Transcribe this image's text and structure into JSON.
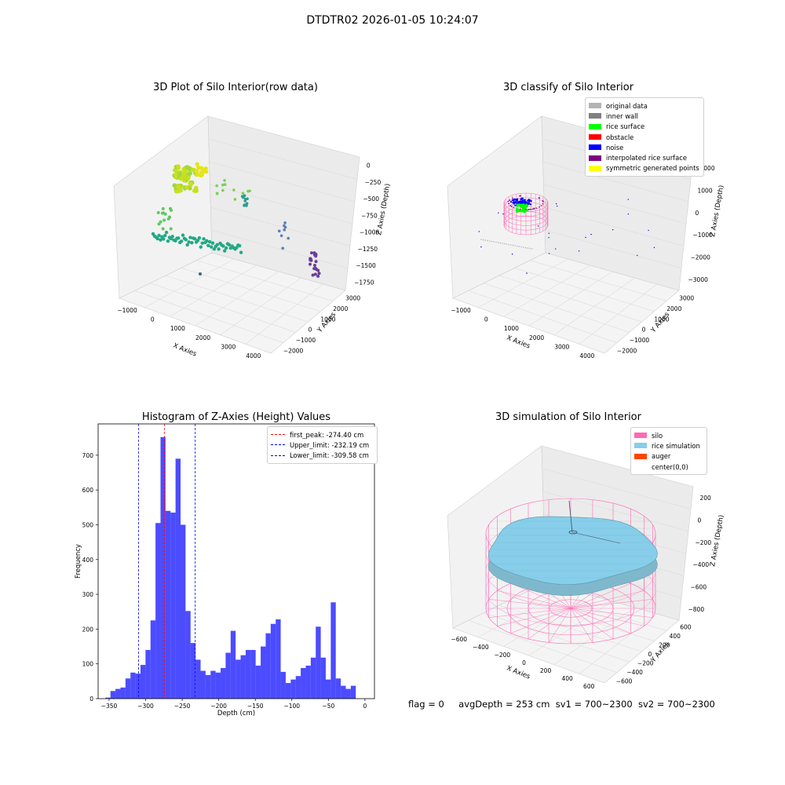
{
  "suptitle": "DTDTR02 2026-01-05 10:24:07",
  "chart_data": [
    {
      "type": "scatter",
      "title": "3D Plot of Silo Interior(row data)",
      "xlabel": "X Axies",
      "ylabel": "Y Axies",
      "zlabel": "Z Axies (Depth)",
      "x_ticks": [
        "−1000",
        "0",
        "1000",
        "2000",
        "3000",
        "4000"
      ],
      "y_ticks": [
        "−2000",
        "−1000",
        "0",
        "1000",
        "2000",
        "3000"
      ],
      "z_ticks": [
        "−1750",
        "−1500",
        "−1250",
        "−1000",
        "−750",
        "−500",
        "−250",
        "0"
      ]
    },
    {
      "type": "scatter",
      "title": "3D classify of Silo Interior",
      "xlabel": "X Axies",
      "ylabel": "Y Axies",
      "zlabel": "Z Axies (Depth)",
      "x_ticks": [
        "−1000",
        "0",
        "1000",
        "2000",
        "3000",
        "4000"
      ],
      "y_ticks": [
        "−2000",
        "−1000",
        "0",
        "1000",
        "2000",
        "3000"
      ],
      "z_ticks": [
        "−3000",
        "−2000",
        "−1000",
        "0",
        "1000",
        "2000"
      ],
      "legend": [
        {
          "label": "original data",
          "color": "#b3b3b3"
        },
        {
          "label": "inner wall",
          "color": "#808080"
        },
        {
          "label": "rice surface",
          "color": "#00ff00"
        },
        {
          "label": "obstacle",
          "color": "#ff0000"
        },
        {
          "label": "noise",
          "color": "#0000ff"
        },
        {
          "label": "interpolated rice surface",
          "color": "#800080"
        },
        {
          "label": "symmetric generated points",
          "color": "#ffff00"
        }
      ]
    },
    {
      "type": "bar",
      "title": "Histogram of Z-Axies (Height) Values",
      "xlabel": "Depth (cm)",
      "ylabel": "Frequency",
      "xlim": [
        -365,
        13
      ],
      "ylim": [
        0,
        790
      ],
      "x_ticks": [
        -350,
        -300,
        -250,
        -200,
        -150,
        -100,
        -50,
        0
      ],
      "y_ticks": [
        0,
        100,
        200,
        300,
        400,
        500,
        600,
        700
      ],
      "bin_start": -355.0,
      "bin_width": 6.85,
      "values": [
        3,
        22,
        28,
        32,
        58,
        75,
        72,
        97,
        140,
        225,
        505,
        752,
        540,
        535,
        690,
        500,
        252,
        160,
        112,
        80,
        68,
        80,
        75,
        88,
        132,
        195,
        112,
        125,
        140,
        140,
        95,
        150,
        188,
        215,
        228,
        77,
        45,
        55,
        65,
        88,
        95,
        118,
        207,
        118,
        55,
        277,
        58,
        37,
        28,
        37
      ],
      "color": "#0000ff",
      "lines": [
        {
          "label": "first_peak: -274.40 cm",
          "x": -274.4,
          "color": "#ff0000"
        },
        {
          "label": "Upper_limit: -232.19 cm",
          "x": -232.19,
          "color": "#0000ff"
        },
        {
          "label": "Lower_limit: -309.58 cm",
          "x": -309.58,
          "color": "#0000ff"
        }
      ]
    },
    {
      "type": "scatter",
      "title": "3D simulation of Silo Interior",
      "xlabel": "X Axies",
      "ylabel": "Y Axies",
      "zlabel": "Z Axies (Depth)",
      "x_ticks": [
        "−600",
        "−400",
        "−200",
        "0",
        "200",
        "400",
        "600"
      ],
      "y_ticks": [
        "−600",
        "−400",
        "−200",
        "0",
        "200",
        "400",
        "600"
      ],
      "z_ticks": [
        "−800",
        "−600",
        "−400",
        "−200",
        "0",
        "200"
      ],
      "legend": [
        {
          "label": "silo",
          "color": "#ff69b4"
        },
        {
          "label": "rice simulation",
          "color": "#87ceeb"
        },
        {
          "label": "auger",
          "color": "#ff4500"
        },
        {
          "label": "center(0,0)",
          "color": ""
        }
      ]
    }
  ],
  "status": {
    "flag": "flag = 0",
    "avg_depth": "avgDepth = 253 cm",
    "sv1": "sv1 = 700~2300",
    "sv2": "sv2 = 700~2300"
  }
}
